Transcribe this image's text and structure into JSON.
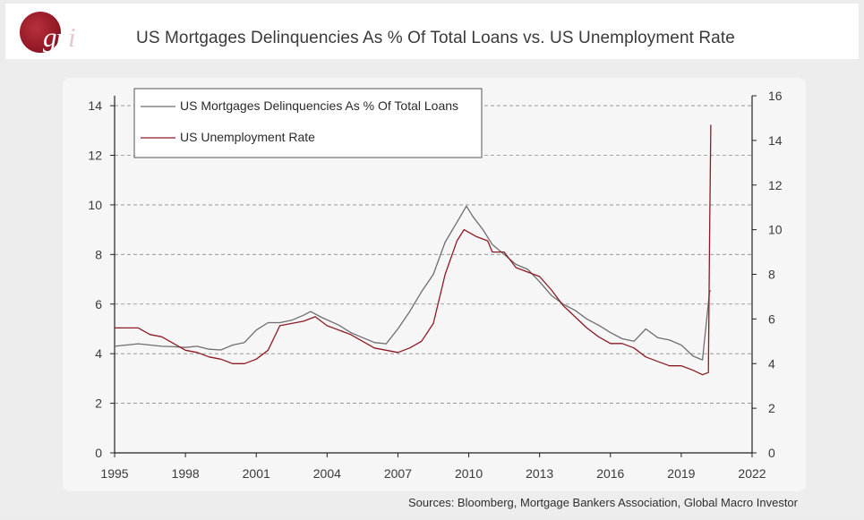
{
  "logo": {
    "text_main": "gm",
    "text_tail": "i"
  },
  "title": "US Mortgages Delinquencies As % Of Total Loans vs. US Unemployment Rate",
  "source": "Sources: Bloomberg, Mortgage Bankers Association, Global Macro Investor",
  "chart_data": {
    "type": "line",
    "title": "US Mortgages Delinquencies As % Of Total Loans vs. US Unemployment Rate",
    "x_axis": {
      "ticks": [
        1995,
        1998,
        2001,
        2004,
        2007,
        2010,
        2013,
        2016,
        2019,
        2022
      ],
      "range": [
        1995,
        2022
      ]
    },
    "y_left": {
      "ticks": [
        0,
        2,
        4,
        6,
        8,
        10,
        12,
        14
      ],
      "range": [
        0,
        14.4
      ]
    },
    "y_right": {
      "ticks": [
        0,
        2,
        4,
        6,
        8,
        10,
        12,
        14,
        16
      ],
      "range": [
        0,
        16
      ]
    },
    "grid": "horizontal dashed",
    "legend_position": "top-left",
    "series": [
      {
        "name": "US Mortgages Delinquencies As % Of Total Loans",
        "axis": "left",
        "color": "#6e6e6e",
        "points": [
          [
            1995.0,
            4.3
          ],
          [
            1995.5,
            4.35
          ],
          [
            1996.0,
            4.4
          ],
          [
            1996.5,
            4.35
          ],
          [
            1997.0,
            4.3
          ],
          [
            1997.5,
            4.28
          ],
          [
            1998.0,
            4.25
          ],
          [
            1998.5,
            4.3
          ],
          [
            1999.0,
            4.18
          ],
          [
            1999.5,
            4.15
          ],
          [
            2000.0,
            4.35
          ],
          [
            2000.5,
            4.45
          ],
          [
            2001.0,
            4.95
          ],
          [
            2001.5,
            5.25
          ],
          [
            2002.0,
            5.25
          ],
          [
            2002.5,
            5.35
          ],
          [
            2003.0,
            5.55
          ],
          [
            2003.3,
            5.7
          ],
          [
            2003.8,
            5.45
          ],
          [
            2004.5,
            5.15
          ],
          [
            2005.0,
            4.85
          ],
          [
            2005.5,
            4.65
          ],
          [
            2006.0,
            4.45
          ],
          [
            2006.5,
            4.4
          ],
          [
            2007.0,
            5.0
          ],
          [
            2007.5,
            5.7
          ],
          [
            2008.0,
            6.5
          ],
          [
            2008.5,
            7.2
          ],
          [
            2009.0,
            8.5
          ],
          [
            2009.5,
            9.3
          ],
          [
            2009.9,
            9.95
          ],
          [
            2010.2,
            9.5
          ],
          [
            2010.6,
            9.0
          ],
          [
            2011.0,
            8.4
          ],
          [
            2011.5,
            8.0
          ],
          [
            2012.0,
            7.6
          ],
          [
            2012.5,
            7.4
          ],
          [
            2013.0,
            6.9
          ],
          [
            2013.5,
            6.35
          ],
          [
            2014.0,
            6.0
          ],
          [
            2014.5,
            5.75
          ],
          [
            2015.0,
            5.4
          ],
          [
            2015.5,
            5.15
          ],
          [
            2016.0,
            4.85
          ],
          [
            2016.5,
            4.6
          ],
          [
            2017.0,
            4.5
          ],
          [
            2017.5,
            5.0
          ],
          [
            2018.0,
            4.65
          ],
          [
            2018.5,
            4.55
          ],
          [
            2019.0,
            4.35
          ],
          [
            2019.5,
            3.9
          ],
          [
            2019.9,
            3.75
          ],
          [
            2020.2,
            6.5
          ],
          [
            2020.25,
            6.55
          ]
        ]
      },
      {
        "name": "US Unemployment Rate",
        "axis": "right",
        "color": "#8b1a24",
        "points": [
          [
            1995.0,
            5.6
          ],
          [
            1995.5,
            5.6
          ],
          [
            1996.0,
            5.6
          ],
          [
            1996.5,
            5.3
          ],
          [
            1997.0,
            5.2
          ],
          [
            1997.5,
            4.9
          ],
          [
            1998.0,
            4.6
          ],
          [
            1998.5,
            4.5
          ],
          [
            1999.0,
            4.3
          ],
          [
            1999.5,
            4.2
          ],
          [
            2000.0,
            4.0
          ],
          [
            2000.5,
            4.0
          ],
          [
            2001.0,
            4.2
          ],
          [
            2001.5,
            4.6
          ],
          [
            2002.0,
            5.7
          ],
          [
            2002.5,
            5.8
          ],
          [
            2003.0,
            5.9
          ],
          [
            2003.5,
            6.1
          ],
          [
            2004.0,
            5.7
          ],
          [
            2004.5,
            5.5
          ],
          [
            2005.0,
            5.3
          ],
          [
            2005.5,
            5.0
          ],
          [
            2006.0,
            4.7
          ],
          [
            2006.5,
            4.6
          ],
          [
            2007.0,
            4.5
          ],
          [
            2007.5,
            4.7
          ],
          [
            2008.0,
            5.0
          ],
          [
            2008.5,
            5.8
          ],
          [
            2009.0,
            8.0
          ],
          [
            2009.5,
            9.5
          ],
          [
            2009.8,
            10.0
          ],
          [
            2010.3,
            9.7
          ],
          [
            2010.8,
            9.5
          ],
          [
            2011.0,
            9.0
          ],
          [
            2011.5,
            9.0
          ],
          [
            2012.0,
            8.3
          ],
          [
            2012.5,
            8.1
          ],
          [
            2013.0,
            7.9
          ],
          [
            2013.5,
            7.3
          ],
          [
            2014.0,
            6.6
          ],
          [
            2014.5,
            6.1
          ],
          [
            2015.0,
            5.6
          ],
          [
            2015.5,
            5.2
          ],
          [
            2016.0,
            4.9
          ],
          [
            2016.5,
            4.9
          ],
          [
            2017.0,
            4.7
          ],
          [
            2017.5,
            4.3
          ],
          [
            2018.0,
            4.1
          ],
          [
            2018.5,
            3.9
          ],
          [
            2019.0,
            3.9
          ],
          [
            2019.5,
            3.7
          ],
          [
            2019.9,
            3.5
          ],
          [
            2020.15,
            3.6
          ],
          [
            2020.2,
            9.5
          ],
          [
            2020.25,
            14.7
          ]
        ]
      }
    ]
  }
}
